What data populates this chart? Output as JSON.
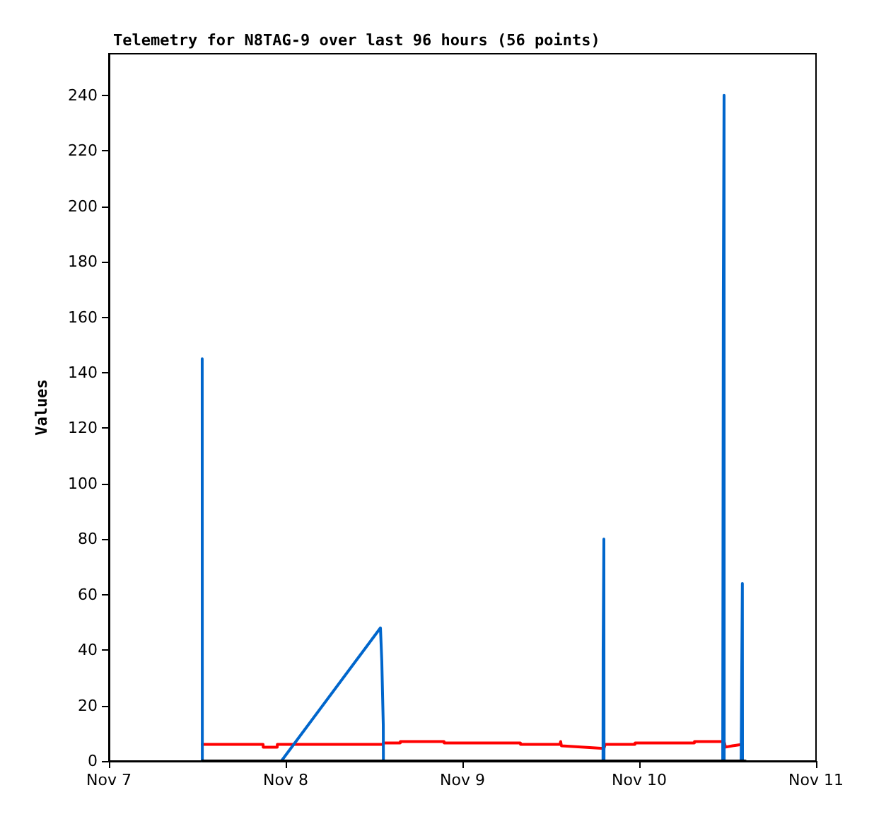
{
  "chart_data": {
    "type": "line",
    "title": "Telemetry for N8TAG-9 over last 96 hours (56 points)",
    "ylabel": "Values",
    "xlim": [
      "--11-07",
      "--11-11"
    ],
    "xticks": [
      {
        "value": "--11-07",
        "label": "Nov 7"
      },
      {
        "value": "--11-08",
        "label": "Nov 8"
      },
      {
        "value": "--11-09",
        "label": "Nov 9"
      },
      {
        "value": "--11-10",
        "label": "Nov 10"
      },
      {
        "value": "--11-11",
        "label": "Nov 11"
      }
    ],
    "ylim": [
      0,
      255
    ],
    "yticks": [
      0,
      20,
      40,
      60,
      80,
      100,
      120,
      140,
      160,
      180,
      200,
      220,
      240
    ],
    "grid": false,
    "marker": "none",
    "line_style": "solid",
    "series": [
      {
        "color": "#ff0000",
        "x": [
          "--11-07T12:40",
          "--11-07T20:56",
          "--11-07T20:57",
          "--11-07T22:51",
          "--11-07T22:52",
          "--11-08T13:15",
          "--11-08T13:16",
          "--11-08T15:33",
          "--11-08T15:34",
          "--11-08T21:30",
          "--11-08T21:31",
          "--11-09T07:52",
          "--11-09T07:53",
          "--11-09T13:15",
          "--11-09T13:20",
          "--11-09T13:26",
          "--11-09T16:30",
          "--11-09T19:12",
          "--11-09T19:23",
          "--11-09T23:25",
          "--11-09T23:26",
          "--11-10T07:29",
          "--11-10T07:30",
          "--11-10T11:31",
          "--11-10T11:43",
          "--11-10T12:40",
          "--11-10T14:00"
        ],
        "values": [
          6,
          6,
          5,
          5,
          6,
          6,
          6.5,
          6.5,
          7,
          7,
          6.5,
          6.5,
          6,
          6,
          7,
          5.5,
          5,
          4.5,
          6,
          6,
          6.5,
          6.5,
          7,
          7,
          5,
          5.5,
          6
        ]
      },
      {
        "color": "#0066cc",
        "x": [
          "--11-07T12:40",
          "--11-07T12:41",
          "--11-07T23:25",
          "--11-08T12:52",
          "--11-08T13:03",
          "--11-08T13:15",
          "--11-08T13:16",
          "--11-09T19:05",
          "--11-09T19:06",
          "--11-09T19:12",
          "--11-09T19:13",
          "--11-10T11:20",
          "--11-10T11:25",
          "--11-10T11:31",
          "--11-10T11:32",
          "--11-10T13:50",
          "--11-10T13:55",
          "--11-10T14:00",
          "--11-10T14:01"
        ],
        "values": [
          145,
          0,
          0,
          48,
          36,
          13,
          0,
          0,
          40,
          80,
          0,
          0,
          168,
          240,
          0,
          0,
          32,
          64,
          0
        ]
      },
      {
        "color": "#000000",
        "x": [
          "--11-07T12:40",
          "--11-10T14:24"
        ],
        "values": [
          0,
          0
        ]
      }
    ]
  }
}
